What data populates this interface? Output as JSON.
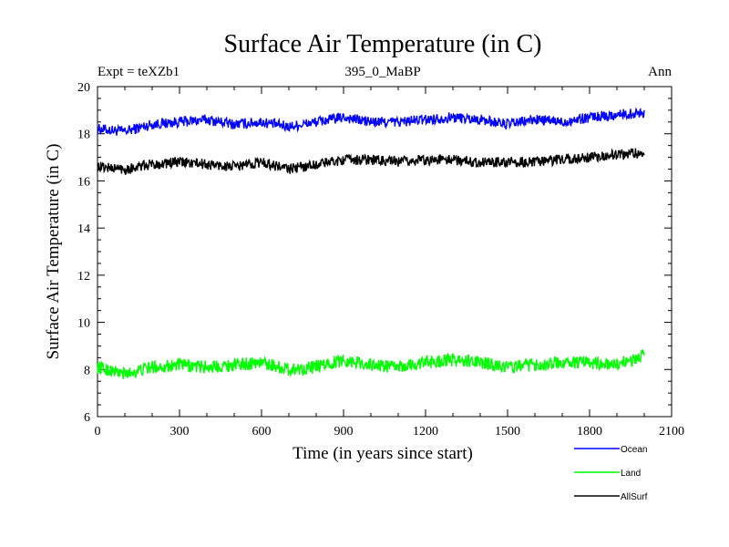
{
  "chart_data": {
    "type": "line",
    "title": "Surface Air Temperature (in C)",
    "subtitle_left": "Expt = teXZb1",
    "subtitle_center": "395_0_MaBP",
    "subtitle_right": "Ann",
    "xlabel": "Time (in years since start)",
    "ylabel": "Surface Air Temperature (in C)",
    "xlim": [
      0,
      2100
    ],
    "ylim": [
      6,
      20
    ],
    "xticks": [
      0,
      300,
      600,
      900,
      1200,
      1500,
      1800,
      2100
    ],
    "yticks": [
      6,
      8,
      10,
      12,
      14,
      16,
      18,
      20
    ],
    "xtick_labels": [
      "0",
      "300",
      "600",
      "900",
      "1200",
      "1500",
      "1800",
      "2100"
    ],
    "ytick_labels": [
      "6",
      "8",
      "10",
      "12",
      "14",
      "16",
      "18",
      "20"
    ],
    "legend_position": "bottom-right, below plot",
    "series": [
      {
        "name": "Ocean",
        "color": "#0000ff",
        "x": [
          0,
          100,
          200,
          300,
          400,
          500,
          600,
          700,
          800,
          900,
          1000,
          1100,
          1200,
          1300,
          1400,
          1500,
          1600,
          1700,
          1800,
          1900,
          2000
        ],
        "y": [
          18.2,
          18.1,
          18.4,
          18.5,
          18.6,
          18.4,
          18.5,
          18.3,
          18.5,
          18.7,
          18.5,
          18.5,
          18.6,
          18.7,
          18.6,
          18.4,
          18.6,
          18.5,
          18.7,
          18.8,
          18.9
        ]
      },
      {
        "name": "Land",
        "color": "#00ff00",
        "x": [
          0,
          100,
          200,
          300,
          400,
          500,
          600,
          700,
          800,
          900,
          1000,
          1100,
          1200,
          1300,
          1400,
          1500,
          1600,
          1700,
          1800,
          1900,
          2000
        ],
        "y": [
          8.1,
          7.8,
          8.1,
          8.2,
          8.1,
          8.2,
          8.3,
          8.0,
          8.1,
          8.4,
          8.2,
          8.1,
          8.3,
          8.4,
          8.3,
          8.1,
          8.2,
          8.3,
          8.3,
          8.2,
          8.6
        ]
      },
      {
        "name": "AllSurf",
        "color": "#000000",
        "x": [
          0,
          100,
          200,
          300,
          400,
          500,
          600,
          700,
          800,
          900,
          1000,
          1100,
          1200,
          1300,
          1400,
          1500,
          1600,
          1700,
          1800,
          1900,
          2000
        ],
        "y": [
          16.6,
          16.5,
          16.7,
          16.8,
          16.7,
          16.6,
          16.8,
          16.5,
          16.7,
          16.9,
          16.9,
          16.8,
          16.9,
          16.9,
          16.8,
          16.8,
          16.8,
          16.9,
          17.0,
          17.1,
          17.2
        ]
      }
    ]
  }
}
